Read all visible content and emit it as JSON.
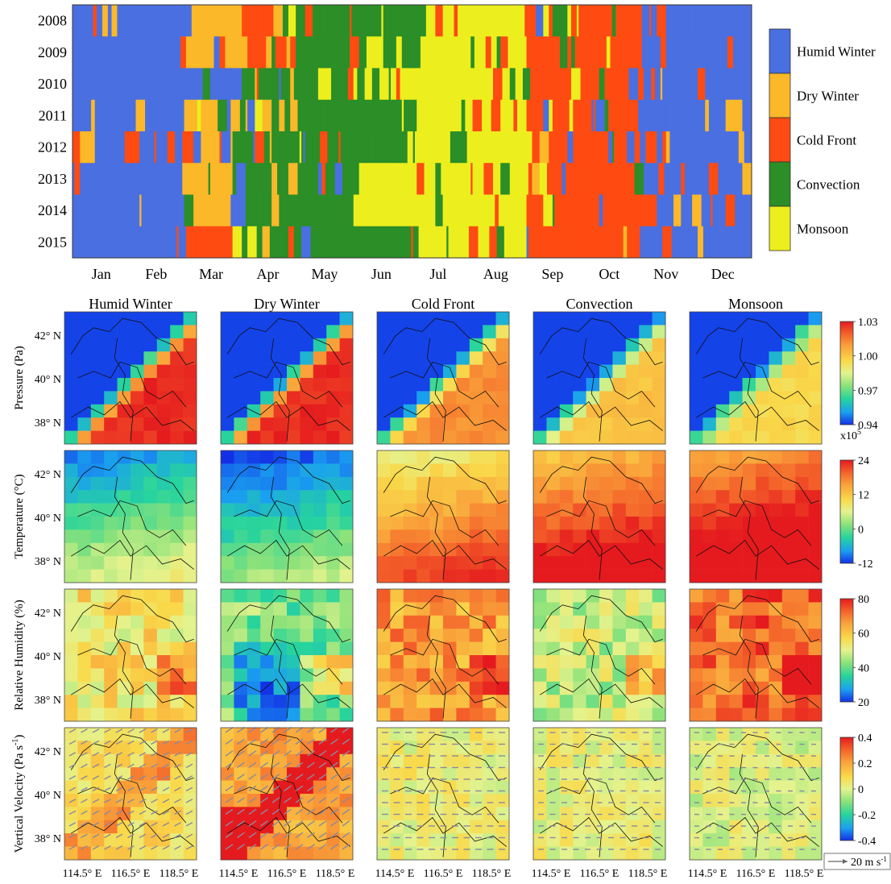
{
  "chart_data": [
    {
      "type": "heatmap",
      "title": "",
      "years": [
        "2008",
        "2009",
        "2010",
        "2011",
        "2012",
        "2013",
        "2014",
        "2015"
      ],
      "months": [
        "Jan",
        "Feb",
        "Mar",
        "Apr",
        "May",
        "Jun",
        "Jul",
        "Aug",
        "Sep",
        "Oct",
        "Nov",
        "Dec"
      ],
      "legend": [
        {
          "name": "Humid Winter",
          "color": "#4a6fe0"
        },
        {
          "name": "Dry Winter",
          "color": "#fbb829"
        },
        {
          "name": "Cold Front",
          "color": "#fe4b12"
        },
        {
          "name": "Convection",
          "color": "#2b8e27"
        },
        {
          "name": "Monsoon",
          "color": "#ecef1d"
        }
      ],
      "legend_position": "right",
      "monthly_dominant_class_approx": [
        [
          "Humid Winter",
          "Humid Winter",
          "Dry Winter",
          "Cold Front",
          "Convection",
          "Convection",
          "Monsoon",
          "Monsoon",
          "Cold Front",
          "Cold Front",
          "Humid Winter",
          "Humid Winter"
        ],
        [
          "Humid Winter",
          "Humid Winter",
          "Dry Winter",
          "Cold Front",
          "Convection",
          "Convection",
          "Monsoon",
          "Monsoon",
          "Cold Front",
          "Cold Front",
          "Humid Winter",
          "Humid Winter"
        ],
        [
          "Humid Winter",
          "Humid Winter",
          "Humid Winter",
          "Convection",
          "Convection",
          "Monsoon",
          "Monsoon",
          "Monsoon",
          "Cold Front",
          "Cold Front",
          "Humid Winter",
          "Humid Winter"
        ],
        [
          "Humid Winter",
          "Humid Winter",
          "Dry Winter",
          "Convection",
          "Convection",
          "Convection",
          "Monsoon",
          "Monsoon",
          "Cold Front",
          "Cold Front",
          "Humid Winter",
          "Humid Winter"
        ],
        [
          "Humid Winter",
          "Humid Winter",
          "Cold Front",
          "Convection",
          "Convection",
          "Convection",
          "Monsoon",
          "Monsoon",
          "Cold Front",
          "Cold Front",
          "Humid Winter",
          "Humid Winter"
        ],
        [
          "Humid Winter",
          "Humid Winter",
          "Dry Winter",
          "Convection",
          "Convection",
          "Monsoon",
          "Monsoon",
          "Monsoon",
          "Cold Front",
          "Cold Front",
          "Humid Winter",
          "Humid Winter"
        ],
        [
          "Humid Winter",
          "Humid Winter",
          "Dry Winter",
          "Convection",
          "Convection",
          "Monsoon",
          "Monsoon",
          "Monsoon",
          "Cold Front",
          "Cold Front",
          "Humid Winter",
          "Humid Winter"
        ],
        [
          "Humid Winter",
          "Humid Winter",
          "Cold Front",
          "Convection",
          "Convection",
          "Convection",
          "Monsoon",
          "Monsoon",
          "Cold Front",
          "Cold Front",
          "Humid Winter",
          "Humid Winter"
        ]
      ]
    },
    {
      "type": "heatmap",
      "title": "",
      "columns": [
        "Humid Winter",
        "Dry Winter",
        "Cold Front",
        "Convection",
        "Monsoon"
      ],
      "rows": [
        {
          "label": "Pressure (Pa)",
          "colorbar_ticks": [
            "1.03",
            "1.00",
            "0.97",
            "0.94"
          ],
          "colorbar_range": [
            0.94,
            1.03
          ],
          "colorbar_multiplier": "x10",
          "colorbar_exponent": "5",
          "mean_values_approx": [
            0.975,
            0.975,
            0.97,
            0.965,
            0.965
          ]
        },
        {
          "label_main": "Temperature (",
          "label_unit": "°C",
          "label_end": ")",
          "colorbar_ticks": [
            "24",
            "12",
            "0",
            "-12"
          ],
          "colorbar_range": [
            -12,
            24
          ],
          "mean_values_approx": [
            -2,
            -5,
            14,
            19,
            22
          ]
        },
        {
          "label": "Relative Humidity (%)",
          "colorbar_ticks": [
            "80",
            "60",
            "40",
            "20"
          ],
          "colorbar_range": [
            20,
            80
          ],
          "mean_values_approx": [
            55,
            42,
            66,
            48,
            72
          ]
        },
        {
          "label_main": "Vertical Velocity (Pa s",
          "label_exp": "-1",
          "label_end": ")",
          "colorbar_ticks": [
            "0.4",
            "0.2",
            "0",
            "-0.2",
            "-0.4"
          ],
          "colorbar_range": [
            -0.4,
            0.4
          ],
          "mean_values_approx": [
            0.08,
            0.2,
            0.03,
            0.02,
            0.0
          ]
        }
      ],
      "y_ticks": [
        "42° N",
        "40° N",
        "38° N"
      ],
      "x_ticks": [
        "114.5° E",
        "116.5° E",
        "118.5° E"
      ],
      "wind_scale": {
        "value": "20 m s",
        "exp": "-1"
      }
    }
  ]
}
